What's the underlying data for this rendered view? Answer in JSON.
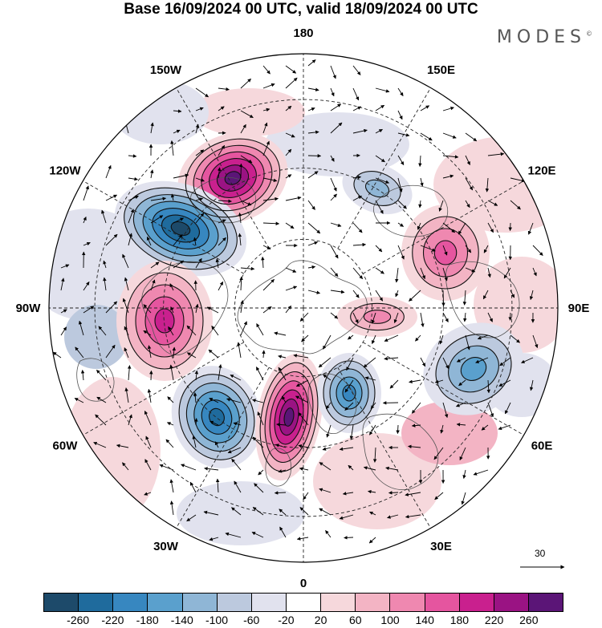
{
  "title": "Base 16/09/2024 00 UTC, valid 18/09/2024 00 UTC",
  "brand": "MODES",
  "brand_mark": "©",
  "longitude_labels": [
    {
      "text": "180",
      "lon": 180
    },
    {
      "text": "150E",
      "lon": 150
    },
    {
      "text": "120E",
      "lon": 120
    },
    {
      "text": "90E",
      "lon": 90
    },
    {
      "text": "60E",
      "lon": 60
    },
    {
      "text": "30E",
      "lon": 30
    },
    {
      "text": "0",
      "lon": 0
    },
    {
      "text": "30W",
      "lon": -30
    },
    {
      "text": "60W",
      "lon": -60
    },
    {
      "text": "90W",
      "lon": -90
    },
    {
      "text": "120W",
      "lon": -120
    },
    {
      "text": "150W",
      "lon": -150
    }
  ],
  "reference_vector": {
    "label": "30"
  },
  "colorbar": {
    "colors": [
      "#1d4a6a",
      "#1f6b9d",
      "#3787c0",
      "#5aa0cd",
      "#8fb6d6",
      "#bcc9de",
      "#e1e2ee",
      "#ffffff",
      "#f6d8dc",
      "#f3b4c4",
      "#ef88b0",
      "#e5559f",
      "#c9208e",
      "#9a1383",
      "#5b1577"
    ],
    "ticks": [
      "-260",
      "-220",
      "-180",
      "-140",
      "-100",
      "-60",
      "-20",
      "20",
      "60",
      "100",
      "140",
      "180",
      "220",
      "260"
    ]
  },
  "anomaly_centers": [
    {
      "name": "pos-aleutian",
      "sign": 1,
      "level": 260
    },
    {
      "name": "neg-alaska-canada",
      "sign": -1,
      "level": 260
    },
    {
      "name": "pos-north-america",
      "sign": 1,
      "level": 180
    },
    {
      "name": "neg-north-atlantic",
      "sign": -1,
      "level": 220
    },
    {
      "name": "pos-east-atlantic",
      "sign": 1,
      "level": 260
    },
    {
      "name": "neg-scandinavia",
      "sign": -1,
      "level": 180
    },
    {
      "name": "neg-central-asia",
      "sign": -1,
      "level": 140
    },
    {
      "name": "pos-east-asia",
      "sign": 1,
      "level": 140
    },
    {
      "name": "pos-siberia",
      "sign": 1,
      "level": 100
    },
    {
      "name": "neg-east-siberia",
      "sign": -1,
      "level": 100
    }
  ]
}
